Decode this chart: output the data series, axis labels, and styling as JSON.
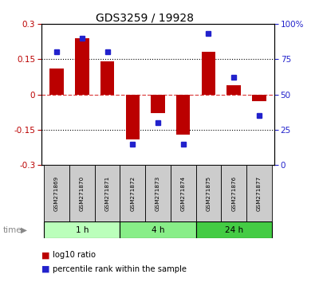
{
  "title": "GDS3259 / 19928",
  "samples": [
    "GSM271869",
    "GSM271870",
    "GSM271871",
    "GSM271872",
    "GSM271873",
    "GSM271874",
    "GSM271875",
    "GSM271876",
    "GSM271877"
  ],
  "log10_ratio": [
    0.11,
    0.24,
    0.14,
    -0.19,
    -0.08,
    -0.17,
    0.18,
    0.04,
    -0.03
  ],
  "percentile_rank": [
    80,
    90,
    80,
    15,
    30,
    15,
    93,
    62,
    35
  ],
  "groups": [
    {
      "label": "1 h",
      "start": 0,
      "end": 2,
      "color": "#bbffbb"
    },
    {
      "label": "4 h",
      "start": 3,
      "end": 5,
      "color": "#88ee88"
    },
    {
      "label": "24 h",
      "start": 6,
      "end": 8,
      "color": "#44cc44"
    }
  ],
  "ylim_left": [
    -0.3,
    0.3
  ],
  "ylim_right": [
    0,
    100
  ],
  "yticks_left": [
    -0.3,
    -0.15,
    0.0,
    0.15,
    0.3
  ],
  "yticks_right": [
    0,
    25,
    50,
    75,
    100
  ],
  "bar_color": "#bb0000",
  "dot_color": "#2222cc",
  "hline_color": "#dd4444",
  "dotline_color": "black",
  "background_color": "white"
}
